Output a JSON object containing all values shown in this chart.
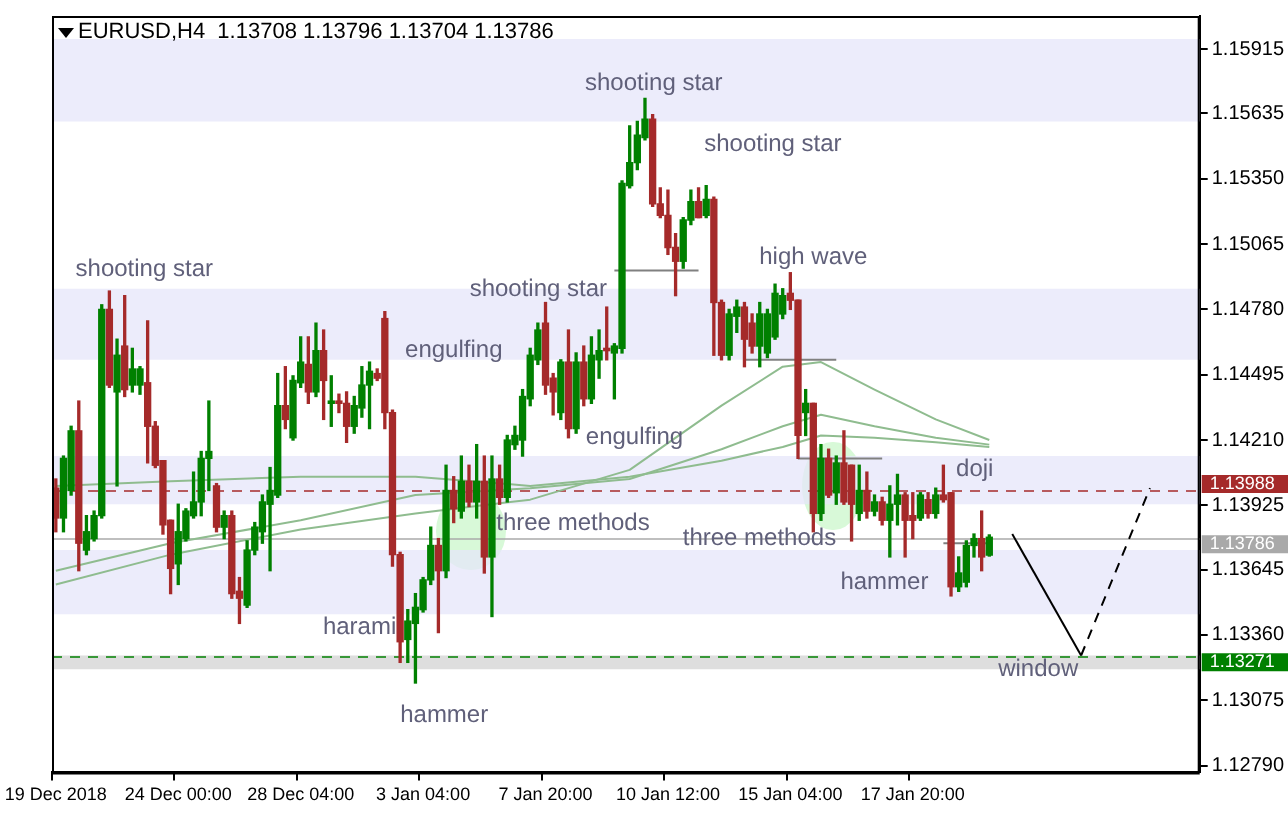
{
  "chart_data": {
    "type": "candlestick",
    "title": "EURUSD,H4  1.13708 1.13796 1.13704 1.13786",
    "categories": [
      "19 Dec 2018",
      null,
      null,
      null,
      null,
      null,
      null,
      null,
      null,
      null,
      null,
      null,
      null,
      null,
      null,
      null,
      "24 Dec 00:00",
      null,
      null,
      null,
      null,
      null,
      null,
      null,
      null,
      null,
      null,
      null,
      null,
      null,
      null,
      null,
      "28 Dec 04:00",
      null,
      null,
      null,
      null,
      null,
      null,
      null,
      null,
      null,
      null,
      null,
      null,
      null,
      null,
      null,
      "3 Jan 04:00",
      null,
      null,
      null,
      null,
      null,
      null,
      null,
      null,
      null,
      null,
      null,
      null,
      null,
      null,
      null,
      "7 Jan 20:00",
      null,
      null,
      null,
      null,
      null,
      null,
      null,
      null,
      null,
      null,
      null,
      null,
      null,
      null,
      null,
      "10 Jan 12:00",
      null,
      null,
      null,
      null,
      null,
      null,
      null,
      null,
      null,
      null,
      null,
      null,
      null,
      null,
      null,
      "15 Jan 04:00",
      null,
      null,
      null,
      null,
      null,
      null,
      null,
      null,
      null,
      null,
      null,
      null,
      null,
      null,
      null,
      "17 Jan 20:00",
      null,
      null,
      null,
      null,
      null,
      null,
      null,
      null,
      null,
      null,
      null,
      null,
      null,
      null,
      null,
      null,
      null,
      null,
      null,
      null,
      null,
      null,
      null,
      null,
      null,
      null,
      null,
      null,
      null,
      null,
      null,
      null,
      null,
      null,
      null,
      null,
      null
    ],
    "ohlc": [
      [
        1.14,
        1.1404,
        1.1381,
        1.1387
      ],
      [
        1.1387,
        1.1414,
        1.1381,
        1.1413
      ],
      [
        1.1399,
        1.1427,
        1.1397,
        1.1425
      ],
      [
        1.1425,
        1.1438,
        1.1364,
        1.1376
      ],
      [
        1.1373,
        1.1388,
        1.1371,
        1.1381
      ],
      [
        1.1378,
        1.139,
        1.1377,
        1.1388
      ],
      [
        1.1388,
        1.148,
        1.1387,
        1.1478
      ],
      [
        1.1478,
        1.1486,
        1.1444,
        1.1445
      ],
      [
        1.1442,
        1.1465,
        1.1401,
        1.1458
      ],
      [
        1.1462,
        1.1484,
        1.144,
        1.1443
      ],
      [
        1.1445,
        1.1461,
        1.1442,
        1.1452
      ],
      [
        1.1445,
        1.1453,
        1.1441,
        1.1452
      ],
      [
        1.1446,
        1.1473,
        1.1411,
        1.1427
      ],
      [
        1.1427,
        1.1429,
        1.1409,
        1.141
      ],
      [
        1.1412,
        1.1412,
        1.138,
        1.1384
      ],
      [
        1.1386,
        1.1386,
        1.1354,
        1.1365
      ],
      [
        1.1367,
        1.1393,
        1.1358,
        1.1381
      ],
      [
        1.1378,
        1.1391,
        1.1377,
        1.139
      ],
      [
        1.1388,
        1.1407,
        1.1387,
        1.1394
      ],
      [
        1.1394,
        1.1416,
        1.1388,
        1.1413
      ],
      [
        1.1413,
        1.1438,
        1.1399,
        1.1416
      ],
      [
        1.1401,
        1.1402,
        1.1381,
        1.1383
      ],
      [
        1.1383,
        1.139,
        1.1378,
        1.1388
      ],
      [
        1.1388,
        1.139,
        1.1352,
        1.1354
      ],
      [
        1.1355,
        1.1361,
        1.1341,
        1.1352
      ],
      [
        1.1349,
        1.1377,
        1.1348,
        1.1373
      ],
      [
        1.1373,
        1.1385,
        1.1371,
        1.1383
      ],
      [
        1.1381,
        1.1397,
        1.1376,
        1.1394
      ],
      [
        1.1393,
        1.1409,
        1.1364,
        1.1399
      ],
      [
        1.1397,
        1.145,
        1.1396,
        1.1436
      ],
      [
        1.1436,
        1.1453,
        1.1426,
        1.143
      ],
      [
        1.1422,
        1.1449,
        1.1421,
        1.1447
      ],
      [
        1.1446,
        1.1466,
        1.1444,
        1.1455
      ],
      [
        1.1454,
        1.1466,
        1.1437,
        1.1442
      ],
      [
        1.1442,
        1.1472,
        1.144,
        1.146
      ],
      [
        1.146,
        1.1469,
        1.143,
        1.1447
      ],
      [
        1.1437,
        1.1449,
        1.1427,
        1.1438
      ],
      [
        1.1438,
        1.1441,
        1.1433,
        1.1437
      ],
      [
        1.1437,
        1.1442,
        1.142,
        1.1427
      ],
      [
        1.1427,
        1.144,
        1.1424,
        1.1436
      ],
      [
        1.1435,
        1.1453,
        1.1431,
        1.1445
      ],
      [
        1.1445,
        1.1455,
        1.1426,
        1.1451
      ],
      [
        1.145,
        1.1452,
        1.1447,
        1.1448
      ],
      [
        1.1474,
        1.1477,
        1.1426,
        1.1433
      ],
      [
        1.1433,
        1.1434,
        1.1366,
        1.1371
      ],
      [
        1.1371,
        1.1372,
        1.1324,
        1.1333
      ],
      [
        1.1334,
        1.1347,
        1.1324,
        1.1342
      ],
      [
        1.1341,
        1.1354,
        1.1315,
        1.1348
      ],
      [
        1.1347,
        1.1361,
        1.1346,
        1.136
      ],
      [
        1.136,
        1.1383,
        1.1358,
        1.1375
      ],
      [
        1.1375,
        1.1378,
        1.1337,
        1.1364
      ],
      [
        1.1364,
        1.141,
        1.1361,
        1.1399
      ],
      [
        1.1399,
        1.1405,
        1.1385,
        1.1391
      ],
      [
        1.139,
        1.1414,
        1.1387,
        1.1403
      ],
      [
        1.1403,
        1.141,
        1.1392,
        1.1394
      ],
      [
        1.1394,
        1.1419,
        1.1387,
        1.1403
      ],
      [
        1.1403,
        1.1414,
        1.1363,
        1.137
      ],
      [
        1.137,
        1.1414,
        1.1344,
        1.1404
      ],
      [
        1.1404,
        1.141,
        1.1393,
        1.1396
      ],
      [
        1.1396,
        1.1423,
        1.1394,
        1.1421
      ],
      [
        1.1419,
        1.1427,
        1.1417,
        1.1423
      ],
      [
        1.1421,
        1.1443,
        1.1414,
        1.144
      ],
      [
        1.1439,
        1.1461,
        1.1436,
        1.1458
      ],
      [
        1.1456,
        1.1472,
        1.1454,
        1.1469
      ],
      [
        1.1472,
        1.1481,
        1.1441,
        1.1445
      ],
      [
        1.1448,
        1.145,
        1.1432,
        1.1442
      ],
      [
        1.1433,
        1.1456,
        1.143,
        1.1455
      ],
      [
        1.1455,
        1.1469,
        1.1422,
        1.1426
      ],
      [
        1.1426,
        1.1459,
        1.1424,
        1.1455
      ],
      [
        1.1455,
        1.1462,
        1.1436,
        1.1439
      ],
      [
        1.1439,
        1.1466,
        1.1437,
        1.1458
      ],
      [
        1.1456,
        1.1469,
        1.1448,
        1.146
      ],
      [
        1.1461,
        1.1479,
        1.1456,
        1.146
      ],
      [
        1.1459,
        1.1463,
        1.1439,
        1.1462
      ],
      [
        1.1461,
        1.1534,
        1.1459,
        1.1533
      ],
      [
        1.1532,
        1.1558,
        1.1531,
        1.1542
      ],
      [
        1.1542,
        1.156,
        1.1539,
        1.1554
      ],
      [
        1.1553,
        1.157,
        1.1552,
        1.1561
      ],
      [
        1.1561,
        1.1563,
        1.1523,
        1.1524
      ],
      [
        1.1524,
        1.1531,
        1.1518,
        1.1519
      ],
      [
        1.1519,
        1.153,
        1.1502,
        1.1505
      ],
      [
        1.1505,
        1.1511,
        1.1484,
        1.1499
      ],
      [
        1.1499,
        1.1518,
        1.1496,
        1.1517
      ],
      [
        1.1517,
        1.153,
        1.1515,
        1.1525
      ],
      [
        1.1525,
        1.1531,
        1.1518,
        1.1518
      ],
      [
        1.1519,
        1.1532,
        1.1518,
        1.1526
      ],
      [
        1.1526,
        1.1527,
        1.1458,
        1.1481
      ],
      [
        1.1481,
        1.1482,
        1.1456,
        1.1458
      ],
      [
        1.1458,
        1.1478,
        1.1456,
        1.1476
      ],
      [
        1.1475,
        1.1482,
        1.1468,
        1.1479
      ],
      [
        1.1479,
        1.1481,
        1.1453,
        1.1465
      ],
      [
        1.1472,
        1.1476,
        1.1459,
        1.1462
      ],
      [
        1.1462,
        1.1481,
        1.1453,
        1.1476
      ],
      [
        1.1459,
        1.1478,
        1.1457,
        1.1476
      ],
      [
        1.1466,
        1.1489,
        1.1465,
        1.1485
      ],
      [
        1.1476,
        1.1487,
        1.1474,
        1.1484
      ],
      [
        1.1485,
        1.1494,
        1.1478,
        1.1482
      ],
      [
        1.1482,
        1.1482,
        1.1413,
        1.1423
      ],
      [
        1.1433,
        1.1443,
        1.1423,
        1.1437
      ],
      [
        1.1437,
        1.1437,
        1.1381,
        1.1389
      ],
      [
        1.1389,
        1.1419,
        1.1386,
        1.1413
      ],
      [
        1.1413,
        1.1417,
        1.1396,
        1.1397
      ],
      [
        1.1398,
        1.1414,
        1.1393,
        1.1411
      ],
      [
        1.1411,
        1.1425,
        1.1393,
        1.1394
      ],
      [
        1.141,
        1.141,
        1.1377,
        1.1393
      ],
      [
        1.1389,
        1.141,
        1.1386,
        1.1399
      ],
      [
        1.1399,
        1.1407,
        1.1387,
        1.139
      ],
      [
        1.139,
        1.1397,
        1.1388,
        1.1394
      ],
      [
        1.1394,
        1.1396,
        1.1384,
        1.1386
      ],
      [
        1.1386,
        1.1401,
        1.137,
        1.1393
      ],
      [
        1.1393,
        1.1406,
        1.1384,
        1.1397
      ],
      [
        1.1397,
        1.1398,
        1.137,
        1.1386
      ],
      [
        1.1388,
        1.1398,
        1.1378,
        1.1386
      ],
      [
        1.1387,
        1.1398,
        1.1386,
        1.1397
      ],
      [
        1.1395,
        1.1398,
        1.1387,
        1.1389
      ],
      [
        1.1389,
        1.14,
        1.1387,
        1.1397
      ],
      [
        1.1397,
        1.141,
        1.1394,
        1.1395
      ],
      [
        1.1398,
        1.1398,
        1.1353,
        1.1357
      ],
      [
        1.1357,
        1.137,
        1.1355,
        1.1363
      ],
      [
        1.1359,
        1.1377,
        1.1357,
        1.1375
      ],
      [
        1.1375,
        1.138,
        1.137,
        1.1378
      ],
      [
        1.1378,
        1.139,
        1.1364,
        1.137
      ],
      [
        1.13708,
        1.13796,
        1.13704,
        1.13786
      ],
      null,
      null,
      null,
      null,
      null,
      null,
      null,
      null,
      null,
      null,
      null,
      null,
      null,
      null,
      null,
      null,
      null,
      null,
      null,
      null,
      null,
      null,
      null,
      null,
      null,
      null,
      null
    ],
    "colors": [
      "#a52a2a",
      "#008000",
      "#008000",
      "#a52a2a",
      "#008000",
      "#008000",
      "#008000",
      "#a52a2a",
      "#008000",
      "#a52a2a",
      "#008000",
      "#008000",
      "#a52a2a",
      "#a52a2a",
      "#a52a2a",
      "#a52a2a",
      "#008000",
      "#008000",
      "#008000",
      "#008000",
      "#008000",
      "#a52a2a",
      "#008000",
      "#a52a2a",
      "#a52a2a",
      "#008000",
      "#008000",
      "#008000",
      "#008000",
      "#008000",
      "#a52a2a",
      "#008000",
      "#008000",
      "#a52a2a",
      "#008000",
      "#a52a2a",
      "#008000",
      "#a52a2a",
      "#a52a2a",
      "#008000",
      "#008000",
      "#008000",
      "#a52a2a",
      "#a52a2a",
      "#a52a2a",
      "#a52a2a",
      "#008000",
      "#008000",
      "#008000",
      "#008000",
      "#a52a2a",
      "#008000",
      "#a52a2a",
      "#008000",
      "#a52a2a",
      "#008000",
      "#a52a2a",
      "#008000",
      "#a52a2a",
      "#008000",
      "#008000",
      "#008000",
      "#008000",
      "#008000",
      "#a52a2a",
      "#a52a2a",
      "#008000",
      "#a52a2a",
      "#008000",
      "#a52a2a",
      "#008000",
      "#008000",
      "#a52a2a",
      "#008000",
      "#008000",
      "#008000",
      "#008000",
      "#008000",
      "#a52a2a",
      "#a52a2a",
      "#a52a2a",
      "#a52a2a",
      "#008000",
      "#008000",
      "#a52a2a",
      "#008000",
      "#a52a2a",
      "#a52a2a",
      "#008000",
      "#008000",
      "#a52a2a",
      "#a52a2a",
      "#008000",
      "#008000",
      "#008000",
      "#008000",
      "#a52a2a",
      "#a52a2a",
      "#008000",
      "#a52a2a",
      "#008000",
      "#a52a2a",
      "#008000",
      "#a52a2a",
      "#a52a2a",
      "#008000",
      "#a52a2a",
      "#008000",
      "#a52a2a",
      "#008000",
      "#008000",
      "#a52a2a",
      "#a52a2a",
      "#008000",
      "#a52a2a",
      "#008000",
      "#a52a2a",
      "#a52a2a",
      "#008000",
      "#008000",
      "#008000",
      "#a52a2a",
      "#008000",
      null,
      null,
      null,
      null,
      null,
      null,
      null,
      null,
      null,
      null,
      null,
      null,
      null,
      null,
      null,
      null,
      null,
      null,
      null,
      null,
      null,
      null,
      null,
      null,
      null,
      null,
      null
    ],
    "series": [
      {
        "type": "line",
        "color": "#8fbc8f",
        "values": [
          1.1358,
          null,
          null,
          null,
          null,
          null,
          null,
          null,
          null,
          null,
          null,
          null,
          null,
          null,
          null,
          1.1371,
          null,
          null,
          null,
          null,
          null,
          null,
          null,
          null,
          null,
          null,
          null,
          null,
          null,
          null,
          null,
          null,
          1.1382,
          null,
          null,
          null,
          null,
          null,
          null,
          null,
          null,
          null,
          null,
          null,
          null,
          null,
          null,
          1.1389,
          null,
          null,
          null,
          null,
          null,
          null,
          null,
          null,
          null,
          null,
          null,
          null,
          null,
          null,
          1.1395,
          null,
          null,
          null,
          null,
          null,
          null,
          null,
          null,
          null,
          null,
          null,
          null,
          1.1408,
          null,
          null,
          null,
          null,
          null,
          null,
          null,
          null,
          null,
          null,
          null,
          1.1436,
          null,
          null,
          null,
          null,
          null,
          null,
          null,
          1.1453,
          null,
          null,
          null,
          null,
          1.1455,
          null,
          null,
          null,
          null,
          null,
          null,
          1.1443,
          null,
          null,
          null,
          null,
          null,
          null,
          null,
          1.143,
          null,
          null,
          null,
          null,
          null,
          null,
          1.1421,
          null,
          null,
          null,
          null,
          null,
          null,
          null,
          null,
          null,
          null,
          null,
          null,
          null,
          null,
          null,
          null,
          null,
          null,
          null,
          null,
          null,
          null,
          null,
          null,
          null,
          null,
          null
        ]
      },
      {
        "type": "line",
        "color": "#8fbc8f",
        "values": [
          1.1364,
          null,
          null,
          null,
          null,
          null,
          null,
          null,
          null,
          null,
          null,
          null,
          null,
          null,
          null,
          1.1376,
          null,
          null,
          null,
          null,
          null,
          null,
          null,
          null,
          null,
          null,
          null,
          null,
          null,
          null,
          null,
          null,
          1.1386,
          null,
          null,
          null,
          null,
          null,
          null,
          null,
          null,
          null,
          null,
          null,
          null,
          null,
          null,
          1.1397,
          null,
          null,
          null,
          null,
          null,
          null,
          null,
          null,
          null,
          null,
          null,
          null,
          null,
          null,
          1.14,
          null,
          null,
          null,
          null,
          null,
          null,
          null,
          null,
          null,
          null,
          null,
          null,
          1.1404,
          null,
          null,
          null,
          null,
          null,
          null,
          null,
          null,
          null,
          null,
          null,
          1.1417,
          null,
          null,
          null,
          null,
          null,
          null,
          null,
          1.1427,
          null,
          null,
          null,
          null,
          1.1432,
          null,
          null,
          null,
          null,
          null,
          null,
          1.1427,
          null,
          null,
          null,
          null,
          null,
          null,
          null,
          1.1422,
          null,
          null,
          null,
          null,
          null,
          null,
          1.1419,
          null,
          null,
          null,
          null,
          null,
          null,
          null,
          null,
          null,
          null,
          null,
          null,
          null,
          null,
          null,
          null,
          null,
          null,
          null,
          null,
          null,
          null,
          null,
          null,
          null,
          null,
          null
        ]
      },
      {
        "type": "line",
        "color": "#8fbc8f",
        "values": [
          1.1401,
          null,
          null,
          null,
          null,
          null,
          null,
          null,
          null,
          null,
          null,
          null,
          null,
          null,
          null,
          1.1403,
          null,
          null,
          null,
          null,
          null,
          null,
          null,
          null,
          null,
          null,
          null,
          null,
          null,
          null,
          null,
          null,
          1.1405,
          null,
          null,
          null,
          null,
          null,
          null,
          null,
          null,
          null,
          null,
          null,
          null,
          null,
          null,
          1.1405,
          null,
          null,
          null,
          null,
          null,
          null,
          null,
          null,
          null,
          null,
          null,
          null,
          null,
          null,
          1.1401,
          null,
          null,
          null,
          null,
          null,
          null,
          null,
          null,
          null,
          null,
          null,
          null,
          1.1405,
          null,
          null,
          null,
          null,
          null,
          null,
          null,
          null,
          null,
          null,
          null,
          1.1412,
          null,
          null,
          null,
          null,
          null,
          null,
          null,
          1.1418,
          null,
          null,
          null,
          null,
          1.1423,
          null,
          null,
          null,
          null,
          null,
          null,
          1.1422,
          null,
          null,
          null,
          null,
          null,
          null,
          null,
          1.142,
          null,
          null,
          null,
          null,
          null,
          null,
          1.1418,
          null,
          null,
          null,
          null,
          null,
          null,
          null,
          null,
          null,
          null,
          null,
          null,
          null,
          null,
          null,
          null,
          null,
          null,
          null,
          null,
          null,
          null,
          null,
          null,
          null,
          null,
          null
        ]
      },
      {
        "type": "line",
        "color": "#808080",
        "values": [
          null,
          null,
          null,
          null,
          null,
          null,
          null,
          null,
          null,
          null,
          null,
          null,
          null,
          null,
          null,
          null,
          null,
          null,
          null,
          null,
          null,
          null,
          null,
          null,
          null,
          null,
          null,
          null,
          null,
          null,
          null,
          null,
          null,
          null,
          null,
          null,
          null,
          null,
          null,
          null,
          null,
          null,
          null,
          null,
          null,
          null,
          null,
          null,
          null,
          null,
          null,
          null,
          null,
          null,
          null,
          null,
          null,
          null,
          null,
          null,
          null,
          null,
          null,
          null,
          null,
          null,
          null,
          null,
          null,
          null,
          null,
          null,
          null,
          1.1495,
          null,
          null,
          null,
          null,
          null,
          null,
          null,
          null,
          null,
          null,
          1.1495,
          null,
          null,
          null,
          null,
          null,
          null,
          null,
          null,
          null,
          null,
          null,
          null,
          null,
          null,
          null,
          null,
          null,
          null,
          null,
          null,
          null,
          null,
          null,
          null,
          null,
          null,
          null,
          null,
          null,
          null,
          null,
          null,
          null,
          null,
          null,
          null,
          null,
          null,
          null,
          null,
          null,
          null,
          null,
          null,
          null,
          null,
          null,
          null,
          null,
          null,
          null,
          null,
          null,
          null,
          null,
          null,
          null,
          null,
          null,
          null,
          null,
          null,
          null,
          null,
          null
        ]
      },
      {
        "type": "line",
        "color": "#808080",
        "values": [
          null,
          null,
          null,
          null,
          null,
          null,
          null,
          null,
          null,
          null,
          null,
          null,
          null,
          null,
          null,
          null,
          null,
          null,
          null,
          null,
          null,
          null,
          null,
          null,
          null,
          null,
          null,
          null,
          null,
          null,
          null,
          null,
          null,
          null,
          null,
          null,
          null,
          null,
          null,
          null,
          null,
          null,
          null,
          null,
          null,
          null,
          null,
          null,
          null,
          null,
          null,
          null,
          null,
          null,
          null,
          null,
          null,
          null,
          null,
          null,
          null,
          null,
          null,
          null,
          null,
          null,
          null,
          null,
          null,
          null,
          null,
          null,
          null,
          null,
          null,
          null,
          null,
          null,
          null,
          null,
          null,
          null,
          null,
          null,
          null,
          null,
          null,
          null,
          null,
          null,
          null,
          null,
          null,
          null,
          null,
          null,
          null,
          null,
          null,
          null,
          null,
          null,
          null,
          null,
          null,
          null,
          null,
          null,
          null,
          null,
          null,
          null,
          null,
          null,
          null,
          null,
          1.1376,
          null,
          null,
          null,
          null,
          null,
          1.1376,
          null,
          null,
          null,
          null,
          null,
          null,
          null,
          null,
          null,
          null,
          null,
          null,
          null,
          null,
          null,
          null,
          null,
          null,
          null,
          null,
          null,
          null,
          null,
          null,
          null,
          null,
          null
        ]
      },
      {
        "type": "line",
        "color": "#808080",
        "values": [
          null,
          null,
          null,
          null,
          null,
          null,
          null,
          null,
          null,
          null,
          null,
          null,
          null,
          null,
          null,
          null,
          null,
          null,
          null,
          null,
          null,
          null,
          null,
          null,
          null,
          null,
          null,
          null,
          null,
          null,
          null,
          null,
          null,
          null,
          null,
          null,
          null,
          null,
          null,
          null,
          null,
          null,
          null,
          null,
          null,
          null,
          null,
          null,
          null,
          null,
          null,
          null,
          null,
          null,
          null,
          null,
          null,
          null,
          null,
          null,
          null,
          null,
          null,
          null,
          null,
          null,
          null,
          null,
          null,
          null,
          null,
          null,
          null,
          null,
          null,
          null,
          null,
          null,
          null,
          null,
          null,
          null,
          null,
          null,
          null,
          null,
          null,
          null,
          null,
          null,
          1.1456,
          null,
          null,
          null,
          null,
          null,
          null,
          null,
          null,
          null,
          null,
          null,
          1.1456,
          null,
          null,
          null,
          null,
          null,
          null,
          null,
          null,
          null,
          null,
          null,
          null,
          null,
          null,
          null,
          null,
          null,
          null,
          null,
          null,
          null,
          null,
          null,
          null,
          null,
          null,
          null,
          null,
          null,
          null,
          null,
          null,
          null,
          null,
          null,
          null,
          null,
          null,
          null,
          null,
          null,
          null,
          null,
          null,
          null,
          null,
          null
        ]
      },
      {
        "type": "line",
        "color": "#808080",
        "values": [
          null,
          null,
          null,
          null,
          null,
          null,
          null,
          null,
          null,
          null,
          null,
          null,
          null,
          null,
          null,
          null,
          null,
          null,
          null,
          null,
          null,
          null,
          null,
          null,
          null,
          null,
          null,
          null,
          null,
          null,
          null,
          null,
          null,
          null,
          null,
          null,
          null,
          null,
          null,
          null,
          null,
          null,
          null,
          null,
          null,
          null,
          null,
          null,
          null,
          null,
          null,
          null,
          null,
          null,
          null,
          null,
          null,
          null,
          null,
          null,
          null,
          null,
          null,
          null,
          null,
          null,
          null,
          null,
          null,
          null,
          null,
          null,
          null,
          null,
          null,
          null,
          null,
          null,
          null,
          null,
          null,
          null,
          null,
          null,
          null,
          null,
          null,
          null,
          null,
          null,
          null,
          null,
          null,
          null,
          null,
          null,
          null,
          1.1413,
          null,
          null,
          null,
          null,
          null,
          null,
          null,
          null,
          null,
          null,
          1.1413,
          null,
          null,
          null,
          null,
          null,
          null,
          null,
          null,
          null,
          null,
          null,
          null,
          null,
          null,
          null,
          null,
          null,
          null,
          null,
          null,
          null,
          null,
          null,
          null,
          null,
          null,
          null,
          null,
          null,
          null,
          null,
          null,
          null,
          null,
          null,
          null,
          null,
          null,
          null,
          null,
          null
        ]
      },
      {
        "type": "line",
        "color": "#000000",
        "line_style": "solid",
        "values": [
          null,
          null,
          null,
          null,
          null,
          null,
          null,
          null,
          null,
          null,
          null,
          null,
          null,
          null,
          null,
          null,
          null,
          null,
          null,
          null,
          null,
          null,
          null,
          null,
          null,
          null,
          null,
          null,
          null,
          null,
          null,
          null,
          null,
          null,
          null,
          null,
          null,
          null,
          null,
          null,
          null,
          null,
          null,
          null,
          null,
          null,
          null,
          null,
          null,
          null,
          null,
          null,
          null,
          null,
          null,
          null,
          null,
          null,
          null,
          null,
          null,
          null,
          null,
          null,
          null,
          null,
          null,
          null,
          null,
          null,
          null,
          null,
          null,
          null,
          null,
          null,
          null,
          null,
          null,
          null,
          null,
          null,
          null,
          null,
          null,
          null,
          null,
          null,
          null,
          null,
          null,
          null,
          null,
          null,
          null,
          null,
          null,
          null,
          null,
          null,
          null,
          null,
          null,
          null,
          null,
          null,
          null,
          null,
          null,
          null,
          null,
          null,
          null,
          null,
          null,
          null,
          null,
          null,
          null,
          null,
          null,
          null,
          null,
          null,
          null,
          1.138,
          null,
          null,
          null,
          null,
          null,
          null,
          null,
          null,
          1.1327,
          null,
          null,
          null,
          null,
          null,
          null,
          null,
          null,
          null,
          null,
          null,
          null,
          null,
          null,
          null
        ]
      },
      {
        "type": "line",
        "color": "#000000",
        "line_style": "dashed",
        "values": [
          null,
          null,
          null,
          null,
          null,
          null,
          null,
          null,
          null,
          null,
          null,
          null,
          null,
          null,
          null,
          null,
          null,
          null,
          null,
          null,
          null,
          null,
          null,
          null,
          null,
          null,
          null,
          null,
          null,
          null,
          null,
          null,
          null,
          null,
          null,
          null,
          null,
          null,
          null,
          null,
          null,
          null,
          null,
          null,
          null,
          null,
          null,
          null,
          null,
          null,
          null,
          null,
          null,
          null,
          null,
          null,
          null,
          null,
          null,
          null,
          null,
          null,
          null,
          null,
          null,
          null,
          null,
          null,
          null,
          null,
          null,
          null,
          null,
          null,
          null,
          null,
          null,
          null,
          null,
          null,
          null,
          null,
          null,
          null,
          null,
          null,
          null,
          null,
          null,
          null,
          null,
          null,
          null,
          null,
          null,
          null,
          null,
          null,
          null,
          null,
          null,
          null,
          null,
          null,
          null,
          null,
          null,
          null,
          null,
          null,
          null,
          null,
          null,
          null,
          null,
          null,
          null,
          null,
          null,
          null,
          null,
          null,
          null,
          null,
          null,
          null,
          null,
          null,
          null,
          null,
          null,
          null,
          null,
          null,
          1.1327,
          null,
          null,
          null,
          null,
          null,
          null,
          null,
          null,
          1.14,
          null,
          null,
          null,
          null,
          null,
          null
        ]
      }
    ],
    "ylim": [
      1.1276,
      1.1606
    ],
    "yticks": [
      1.15915,
      1.15635,
      {
        "value": 1.1535,
        "label": "1.15350"
      },
      1.15065,
      {
        "value": 1.1478,
        "label": "1.14780"
      },
      1.14495,
      {
        "value": 1.1421,
        "label": "1.14210"
      },
      1.13925,
      1.13645,
      {
        "value": 1.1336,
        "label": "1.13360"
      },
      1.13075,
      {
        "value": 1.1279,
        "label": "1.12790"
      }
    ],
    "ref_lines": [
      {
        "axis": "y",
        "value": 1.13988,
        "label": "1.13988",
        "color": "#a52a2a",
        "line_style": "dashed"
      },
      {
        "axis": "y",
        "value": 1.13786,
        "label": "1.13786",
        "color": "#a9a9a9",
        "line_style": "solid"
      },
      {
        "axis": "y",
        "value": 1.13271,
        "label": "1.13271",
        "color": "#008000",
        "line_style": "dashed"
      }
    ],
    "bands": [
      {
        "axis": "y",
        "from": 1.156,
        "to": 1.1596,
        "color": "#e6e6fa"
      },
      {
        "axis": "y",
        "from": 1.1456,
        "to": 1.1487,
        "color": "#e6e6fa"
      },
      {
        "axis": "y",
        "from": 1.1393,
        "to": 1.1414,
        "color": "#e6e6fa"
      },
      {
        "axis": "y",
        "from": 1.1345,
        "to": 1.1373,
        "color": "#e6e6fa"
      },
      {
        "axis": "y",
        "from": 1.1321,
        "to": 1.1327,
        "color": "#d3d3d3"
      }
    ],
    "annotations": [
      "shooting star",
      "shooting star",
      "shooting star",
      "shooting star",
      "high wave",
      "engulfing",
      "engulfing",
      "doji",
      "three methods",
      "three methods",
      "hammer",
      "harami",
      "hammer",
      "window"
    ],
    "grid": false,
    "legend": false
  }
}
